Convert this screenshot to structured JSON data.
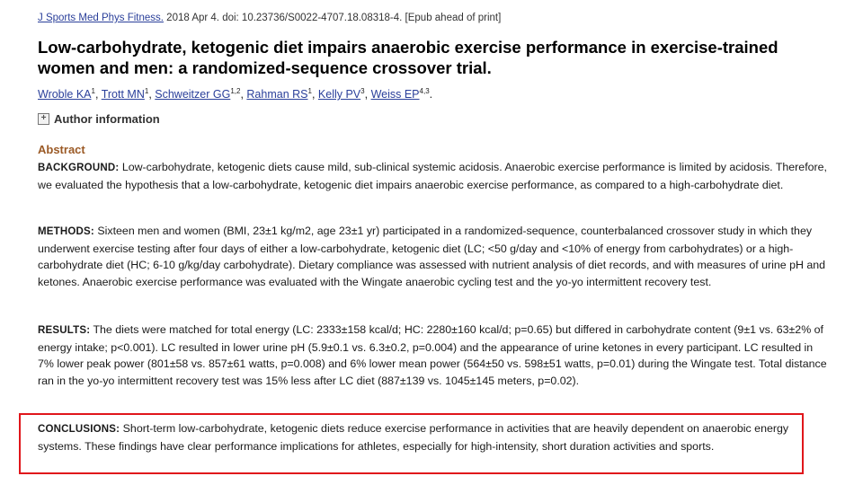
{
  "citation": {
    "journal": "J Sports Med Phys Fitness.",
    "details": "2018 Apr 4. doi: 10.23736/S0022-4707.18.08318-4. [Epub ahead of print]"
  },
  "title": "Low-carbohydrate, ketogenic diet impairs anaerobic exercise performance in exercise-trained women and men: a randomized-sequence crossover trial.",
  "authors": [
    {
      "name": "Wroble KA",
      "sup": "1"
    },
    {
      "name": "Trott MN",
      "sup": "1"
    },
    {
      "name": "Schweitzer GG",
      "sup": "1,2"
    },
    {
      "name": "Rahman RS",
      "sup": "1"
    },
    {
      "name": "Kelly PV",
      "sup": "3"
    },
    {
      "name": "Weiss EP",
      "sup": "4,3"
    }
  ],
  "author_info": {
    "label": "Author information",
    "icon": "plus-icon"
  },
  "abstract": {
    "heading": "Abstract",
    "background": {
      "label": "BACKGROUND:",
      "text": "Low-carbohydrate, ketogenic diets cause mild, sub-clinical systemic acidosis. Anaerobic exercise performance is limited by acidosis. Therefore, we evaluated the hypothesis that a low-carbohydrate, ketogenic diet impairs anaerobic exercise performance, as compared to a high-carbohydrate diet."
    },
    "methods": {
      "label": "METHODS:",
      "text": "Sixteen men and women (BMI, 23±1 kg/m2, age 23±1 yr) participated in a randomized-sequence, counterbalanced crossover study in which they underwent exercise testing after four days of either a low-carbohydrate, ketogenic diet (LC; <50 g/day and <10% of energy from carbohydrates) or a high-carbohydrate diet (HC; 6-10 g/kg/day carbohydrate). Dietary compliance was assessed with nutrient analysis of diet records, and with measures of urine pH and ketones. Anaerobic exercise performance was evaluated with the Wingate anaerobic cycling test and the yo-yo intermittent recovery test."
    },
    "results": {
      "label": "RESULTS:",
      "text": "The diets were matched for total energy (LC: 2333±158 kcal/d; HC: 2280±160 kcal/d; p=0.65) but differed in carbohydrate content (9±1 vs. 63±2% of energy intake; p<0.001). LC resulted in lower urine pH (5.9±0.1 vs. 6.3±0.2, p=0.004) and the appearance of urine ketones in every participant. LC resulted in 7% lower peak power (801±58 vs. 857±61 watts, p=0.008) and 6% lower mean power (564±50 vs. 598±51 watts, p=0.01) during the Wingate test. Total distance ran in the yo-yo intermittent recovery test was 15% less after LC diet (887±139 vs. 1045±145 meters, p=0.02)."
    },
    "conclusions": {
      "label": "CONCLUSIONS:",
      "text": "Short-term low-carbohydrate, ketogenic diets reduce exercise performance in activities that are heavily dependent on anaerobic energy systems. These findings have clear performance implications for athletes, especially for high-intensity, short duration activities and sports."
    }
  },
  "colors": {
    "highlight": "#e0161b",
    "abstract_heading": "#9b5a26",
    "link": "#2a3f9a"
  }
}
